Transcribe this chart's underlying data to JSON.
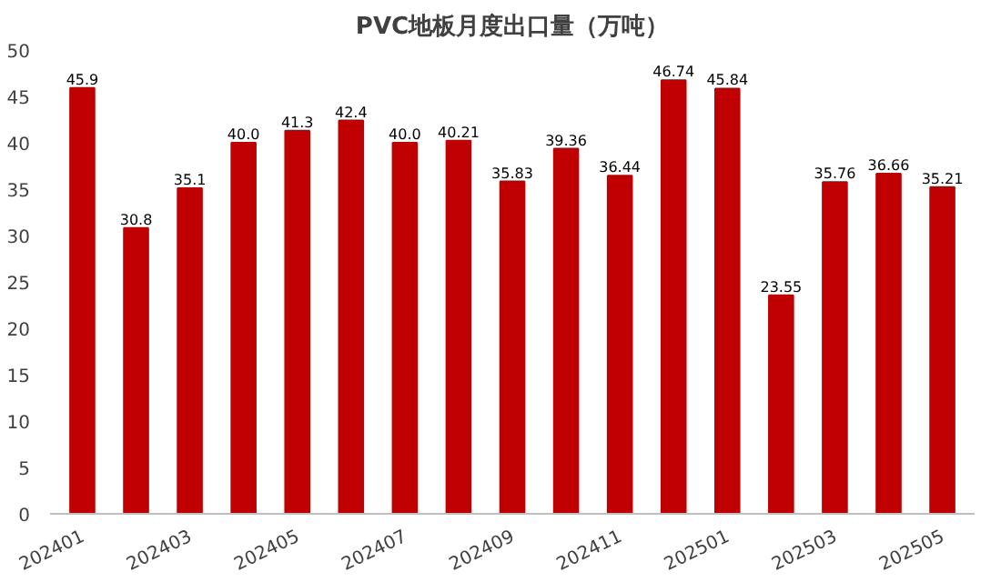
{
  "chart_data": {
    "type": "bar",
    "title": "PVC地板月度出口量（万吨）",
    "categories": [
      "202401",
      null,
      "202403",
      null,
      "202405",
      null,
      "202407",
      null,
      "202409",
      null,
      "202411",
      null,
      "202501",
      null,
      "202503",
      null,
      "202505"
    ],
    "values": [
      45.9,
      30.8,
      35.1,
      40.0,
      41.3,
      42.4,
      40.0,
      40.21,
      35.83,
      39.36,
      36.44,
      46.74,
      45.84,
      23.55,
      35.76,
      36.66,
      35.21
    ],
    "value_labels": [
      "45.9",
      "30.8",
      "35.1",
      "40.0",
      "41.3",
      "42.4",
      "40.0",
      "40.21",
      "35.83",
      "39.36",
      "36.44",
      "46.74",
      "45.84",
      "23.55",
      "35.76",
      "36.66",
      "35.21"
    ],
    "color": "#c00000",
    "ylim": [
      0,
      50
    ],
    "yticks": [
      0,
      5,
      10,
      15,
      20,
      25,
      30,
      35,
      40,
      45,
      50
    ],
    "grid": false
  }
}
